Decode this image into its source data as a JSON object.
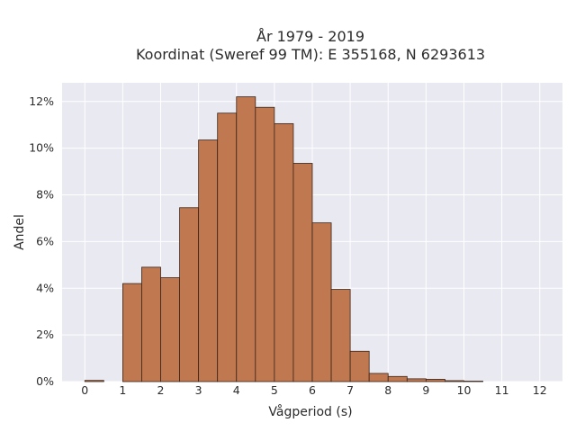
{
  "chart_data": {
    "type": "bar",
    "title_line1": "År 1979 - 2019",
    "title_line2": "Koordinat (Sweref 99 TM): E 355168, N 6293613",
    "xlabel": "Vågperiod (s)",
    "ylabel": "Andel",
    "bin_width": 0.5,
    "bin_starts": [
      0,
      0.5,
      1,
      1.5,
      2,
      2.5,
      3,
      3.5,
      4,
      4.5,
      5,
      5.5,
      6,
      6.5,
      7,
      7.5,
      8,
      8.5,
      9,
      9.5,
      10,
      10.5,
      11,
      11.5
    ],
    "values": [
      0.05,
      0,
      4.2,
      4.9,
      4.45,
      7.45,
      10.35,
      11.5,
      12.2,
      11.75,
      11.05,
      9.35,
      6.8,
      3.95,
      1.3,
      0.35,
      0.22,
      0.12,
      0.1,
      0.04,
      0.02,
      0,
      0,
      0
    ],
    "x_ticks": [
      "0",
      "1",
      "2",
      "3",
      "4",
      "5",
      "6",
      "7",
      "8",
      "9",
      "10",
      "11",
      "12"
    ],
    "y_ticks": [
      "0%",
      "2%",
      "4%",
      "6%",
      "8%",
      "10%",
      "12%"
    ],
    "xlim": [
      -0.6,
      12.6
    ],
    "ylim": [
      0,
      12.8
    ],
    "grid": true,
    "bar_color": "#c07850",
    "bar_edge_color": "#3a2418",
    "plot_bg": "#e9e9f2"
  }
}
